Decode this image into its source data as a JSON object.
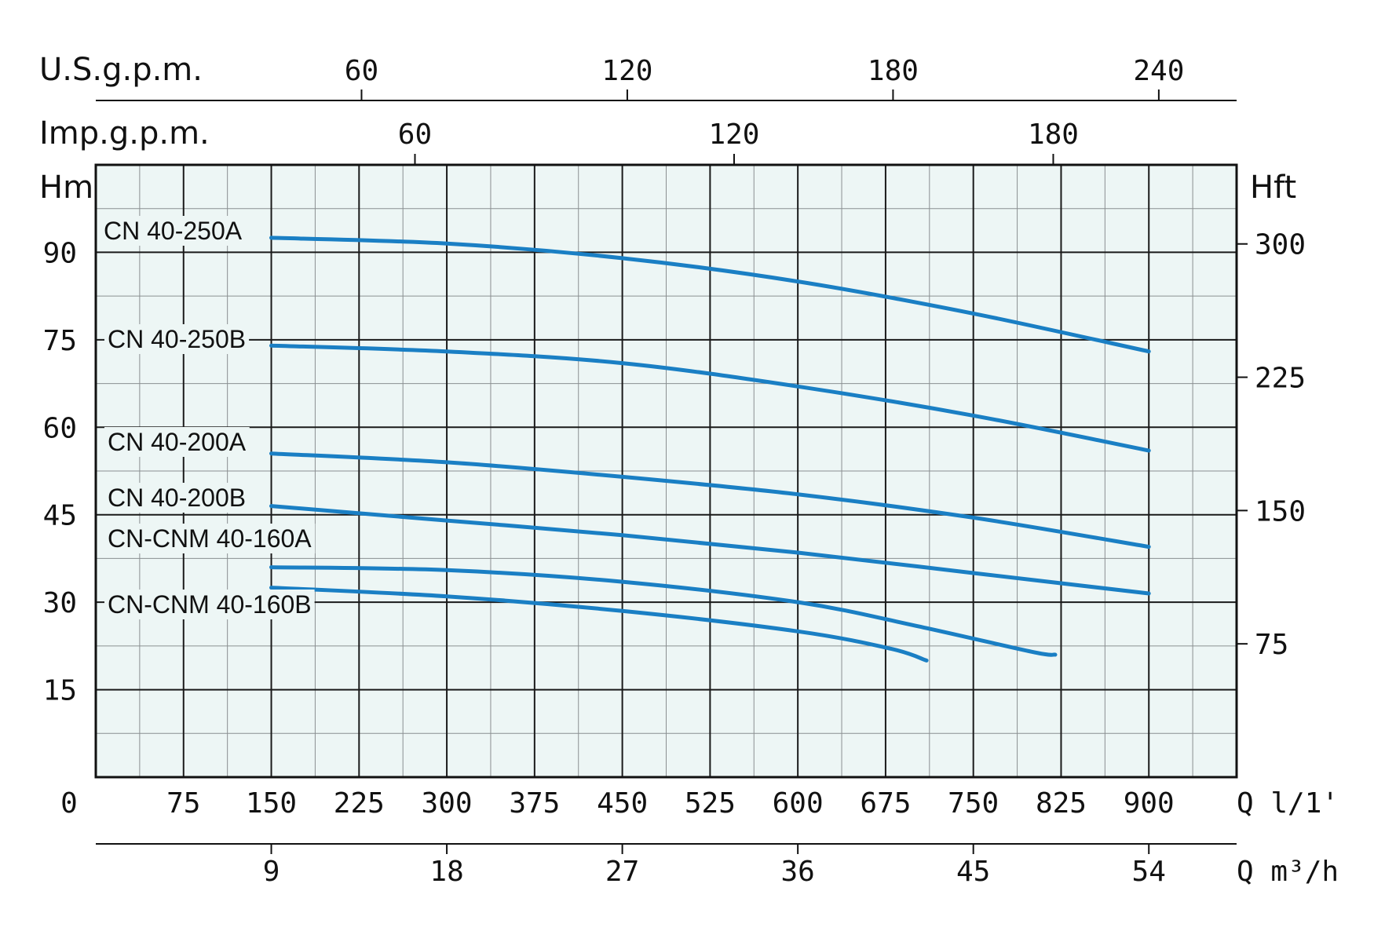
{
  "chart_data": {
    "type": "line",
    "title": "",
    "plot_background": "#edf6f5",
    "curve_color": "#1a7fc4",
    "grid": true,
    "x": {
      "label": "Q l/1'",
      "range": [
        0,
        975
      ],
      "ticks": [
        0,
        75,
        150,
        225,
        300,
        375,
        450,
        525,
        600,
        675,
        750,
        825,
        900
      ]
    },
    "x_m3h": {
      "label": "Q m³/h",
      "ticks": [
        9,
        18,
        27,
        36,
        45,
        54
      ]
    },
    "x_usgpm": {
      "label": "U.S.g.p.m.",
      "ticks": [
        60,
        120,
        180,
        240
      ]
    },
    "x_impgpm": {
      "label": "Imp.g.p.m.",
      "ticks": [
        60,
        120,
        180
      ]
    },
    "y": {
      "label": "Hm",
      "range": [
        0,
        105
      ],
      "ticks": [
        15,
        30,
        45,
        60,
        75,
        90
      ]
    },
    "y_ft": {
      "label": "Hft",
      "ticks": [
        75,
        150,
        225,
        300
      ]
    },
    "series": [
      {
        "name": "CN 40-250A",
        "points": [
          [
            150,
            92.5
          ],
          [
            300,
            91.5
          ],
          [
            450,
            89
          ],
          [
            600,
            85
          ],
          [
            750,
            79.5
          ],
          [
            900,
            73
          ]
        ]
      },
      {
        "name": "CN 40-250B",
        "points": [
          [
            150,
            74
          ],
          [
            300,
            73
          ],
          [
            450,
            71
          ],
          [
            600,
            67
          ],
          [
            750,
            62
          ],
          [
            900,
            56
          ]
        ]
      },
      {
        "name": "CN 40-200A",
        "points": [
          [
            150,
            55.5
          ],
          [
            300,
            54
          ],
          [
            450,
            51.5
          ],
          [
            600,
            48.5
          ],
          [
            750,
            44.5
          ],
          [
            900,
            39.5
          ]
        ]
      },
      {
        "name": "CN 40-200B",
        "points": [
          [
            150,
            46.5
          ],
          [
            300,
            44
          ],
          [
            450,
            41.5
          ],
          [
            600,
            38.5
          ],
          [
            750,
            35
          ],
          [
            900,
            31.5
          ]
        ]
      },
      {
        "name": "CN-CNM 40-160A",
        "points": [
          [
            150,
            36
          ],
          [
            300,
            35.5
          ],
          [
            450,
            33.5
          ],
          [
            600,
            30
          ],
          [
            700,
            26
          ],
          [
            800,
            21.5
          ],
          [
            820,
            21
          ]
        ]
      },
      {
        "name": "CN-CNM 40-160B",
        "points": [
          [
            150,
            32.5
          ],
          [
            300,
            31
          ],
          [
            450,
            28.5
          ],
          [
            600,
            25
          ],
          [
            680,
            22
          ],
          [
            710,
            20
          ]
        ]
      }
    ]
  }
}
